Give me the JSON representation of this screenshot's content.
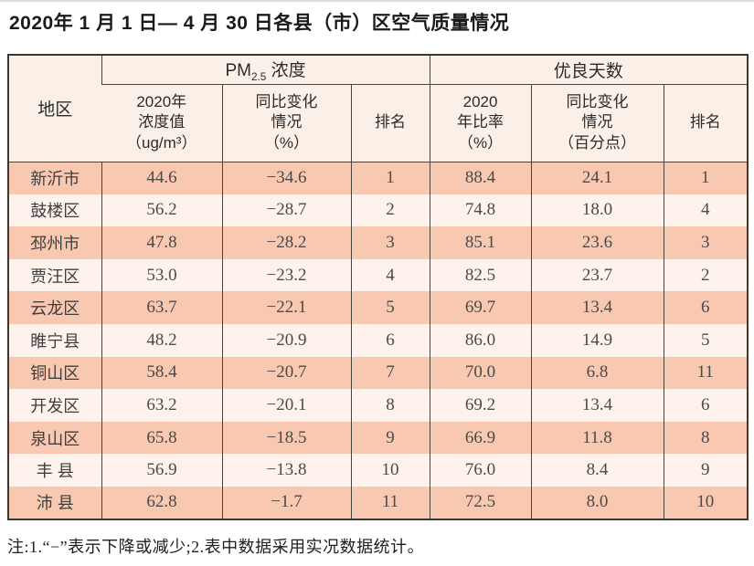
{
  "title": "2020年 1 月 1 日— 4 月 30 日各县（市）区空气质量情况",
  "table": {
    "header": {
      "region": "地区",
      "pm_group": {
        "prefix": "PM",
        "sub": "2.5",
        "rest": " 浓度"
      },
      "good_group": "优良天数",
      "cols": [
        {
          "lines": [
            "2020年",
            "浓度值",
            "（ug/m³）"
          ]
        },
        {
          "lines": [
            "同比变化",
            "情况",
            "（%）"
          ]
        },
        {
          "lines": [
            "排名"
          ]
        },
        {
          "lines": [
            "2020",
            "年比率",
            "（%）"
          ]
        },
        {
          "lines": [
            "同比变化",
            "情况",
            "（百分点）"
          ]
        },
        {
          "lines": [
            "排名"
          ]
        }
      ]
    },
    "rows": [
      {
        "region": "新沂市",
        "pm": "44.6",
        "pm_change": "−34.6",
        "pm_rank": "1",
        "good": "88.4",
        "good_change": "24.1",
        "good_rank": "1"
      },
      {
        "region": "鼓楼区",
        "pm": "56.2",
        "pm_change": "−28.7",
        "pm_rank": "2",
        "good": "74.8",
        "good_change": "18.0",
        "good_rank": "4"
      },
      {
        "region": "邳州市",
        "pm": "47.8",
        "pm_change": "−28.2",
        "pm_rank": "3",
        "good": "85.1",
        "good_change": "23.6",
        "good_rank": "3"
      },
      {
        "region": "贾汪区",
        "pm": "53.0",
        "pm_change": "−23.2",
        "pm_rank": "4",
        "good": "82.5",
        "good_change": "23.7",
        "good_rank": "2"
      },
      {
        "region": "云龙区",
        "pm": "63.7",
        "pm_change": "−22.1",
        "pm_rank": "5",
        "good": "69.7",
        "good_change": "13.4",
        "good_rank": "6"
      },
      {
        "region": "睢宁县",
        "pm": "48.2",
        "pm_change": "−20.9",
        "pm_rank": "6",
        "good": "86.0",
        "good_change": "14.9",
        "good_rank": "5"
      },
      {
        "region": "铜山区",
        "pm": "58.4",
        "pm_change": "−20.7",
        "pm_rank": "7",
        "good": "70.0",
        "good_change": "6.8",
        "good_rank": "11"
      },
      {
        "region": "开发区",
        "pm": "63.2",
        "pm_change": "−20.1",
        "pm_rank": "8",
        "good": "69.2",
        "good_change": "13.4",
        "good_rank": "6"
      },
      {
        "region": "泉山区",
        "pm": "65.8",
        "pm_change": "−18.5",
        "pm_rank": "9",
        "good": "66.9",
        "good_change": "11.8",
        "good_rank": "8"
      },
      {
        "region": "丰 县",
        "pm": "56.9",
        "pm_change": "−13.8",
        "pm_rank": "10",
        "good": "76.0",
        "good_change": "8.4",
        "good_rank": "9"
      },
      {
        "region": "沛 县",
        "pm": "62.8",
        "pm_change": "−1.7",
        "pm_rank": "11",
        "good": "72.5",
        "good_change": "8.0",
        "good_rank": "10"
      }
    ]
  },
  "note": "注:1.“−”表示下降或减少;2.表中数据采用实况数据统计。",
  "colors": {
    "row_salmon": "#f8c8b1",
    "row_cream": "#fdf3ec",
    "header_bg": "#fbf0e7",
    "border_dark": "#3c3731",
    "border_inner": "#4a433c"
  }
}
